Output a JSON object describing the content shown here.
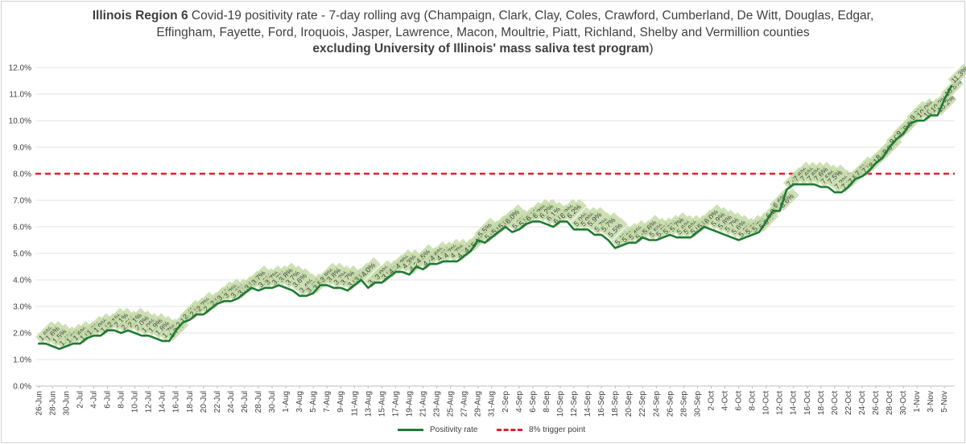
{
  "chart_data": {
    "type": "line",
    "title_bold": "Illinois Region 6",
    "title_line1": " Covid-19 positivity rate - 7-day rolling avg (Champaign, Clark, Clay, Coles, Crawford, Cumberland, De Witt, Douglas, Edgar,",
    "title_line2": "Effingham, Fayette, Ford, Iroquois, Jasper, Lawrence, Macon, Moultrie, Piatt, Richland, Shelby and Vermillion counties",
    "title_line3_bold": "excluding University of Illinois' mass saliva test program",
    "title_line3_end": ")",
    "xlabel": "",
    "ylabel": "",
    "ylim": [
      0,
      12
    ],
    "y_ticks": [
      "0.0%",
      "1.0%",
      "2.0%",
      "3.0%",
      "4.0%",
      "5.0%",
      "6.0%",
      "7.0%",
      "8.0%",
      "9.0%",
      "10.0%",
      "11.0%",
      "12.0%"
    ],
    "x_start_date": "2020-06-26",
    "x_tick_labels": [
      "26-Jun",
      "28-Jun",
      "30-Jun",
      "2-Jul",
      "4-Jul",
      "6-Jul",
      "8-Jul",
      "10-Jul",
      "12-Jul",
      "14-Jul",
      "16-Jul",
      "18-Jul",
      "20-Jul",
      "22-Jul",
      "24-Jul",
      "26-Jul",
      "28-Jul",
      "30-Jul",
      "1-Aug",
      "3-Aug",
      "5-Aug",
      "7-Aug",
      "9-Aug",
      "11-Aug",
      "13-Aug",
      "15-Aug",
      "17-Aug",
      "19-Aug",
      "21-Aug",
      "23-Aug",
      "25-Aug",
      "27-Aug",
      "29-Aug",
      "31-Aug",
      "2-Sep",
      "4-Sep",
      "6-Sep",
      "8-Sep",
      "10-Sep",
      "12-Sep",
      "14-Sep",
      "16-Sep",
      "18-Sep",
      "20-Sep",
      "22-Sep",
      "24-Sep",
      "26-Sep",
      "28-Sep",
      "30-Sep",
      "2-Oct",
      "4-Oct",
      "6-Oct",
      "8-Oct",
      "10-Oct",
      "12-Oct",
      "14-Oct",
      "16-Oct",
      "18-Oct",
      "20-Oct",
      "22-Oct",
      "24-Oct",
      "26-Oct",
      "28-Oct",
      "30-Oct",
      "1-Nov",
      "3-Nov",
      "5-Nov"
    ],
    "series": [
      {
        "name": "Positivity rate",
        "color": "#1e7b34",
        "label_bg": "#c4dca8",
        "values": [
          1.6,
          1.6,
          1.5,
          1.4,
          1.5,
          1.6,
          1.6,
          1.8,
          1.9,
          1.9,
          2.1,
          2.1,
          2.0,
          2.1,
          2.0,
          1.9,
          1.9,
          1.8,
          1.7,
          1.7,
          2.1,
          2.4,
          2.5,
          2.7,
          2.7,
          2.9,
          3.1,
          3.2,
          3.2,
          3.3,
          3.5,
          3.7,
          3.6,
          3.7,
          3.7,
          3.8,
          3.7,
          3.6,
          3.4,
          3.4,
          3.5,
          3.8,
          3.8,
          3.7,
          3.7,
          3.6,
          3.8,
          4.0,
          3.7,
          3.9,
          3.9,
          4.1,
          4.3,
          4.3,
          4.2,
          4.5,
          4.4,
          4.6,
          4.6,
          4.7,
          4.7,
          4.7,
          4.9,
          5.1,
          5.5,
          5.4,
          5.6,
          5.8,
          6.0,
          5.8,
          5.9,
          6.1,
          6.2,
          6.2,
          6.1,
          6.0,
          6.2,
          6.2,
          5.9,
          5.9,
          5.9,
          5.7,
          5.7,
          5.5,
          5.2,
          5.3,
          5.4,
          5.4,
          5.6,
          5.5,
          5.5,
          5.6,
          5.7,
          5.6,
          5.6,
          5.6,
          5.8,
          6.0,
          5.9,
          5.8,
          5.7,
          5.6,
          5.5,
          5.6,
          5.7,
          5.8,
          6.2,
          6.6,
          6.6,
          7.4,
          7.6,
          7.6,
          7.6,
          7.6,
          7.5,
          7.5,
          7.3,
          7.3,
          7.5,
          7.8,
          7.9,
          8.1,
          8.4,
          8.6,
          9.0,
          9.3,
          9.5,
          9.9,
          10.0,
          10.0,
          10.2,
          10.2,
          10.8,
          11.3
        ]
      },
      {
        "name": "8% trigger point",
        "color": "#e0202c",
        "value": 8.0
      }
    ],
    "grid": true,
    "legend_position": "bottom"
  }
}
